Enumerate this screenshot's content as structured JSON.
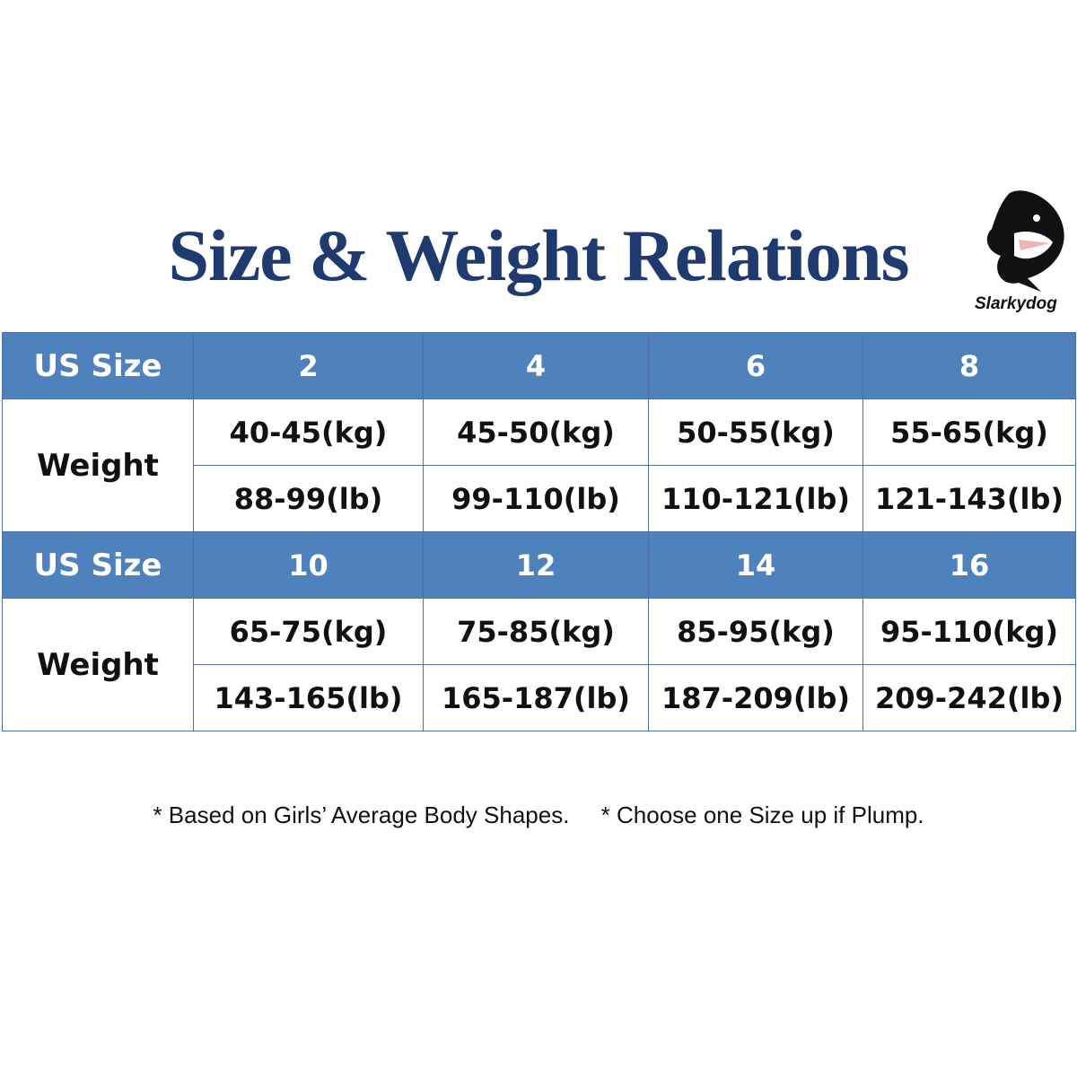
{
  "header": {
    "title": "Size & Weight Relations",
    "brand": "Slarkydog"
  },
  "blocks": [
    {
      "size_label": "US Size",
      "sizes": [
        "2",
        "4",
        "6",
        "8"
      ],
      "weight_label": "Weight",
      "kg": [
        "40-45(kg)",
        "45-50(kg)",
        "50-55(kg)",
        "55-65(kg)"
      ],
      "lb": [
        "88-99(lb)",
        "99-110(lb)",
        "110-121(lb)",
        "121-143(lb)"
      ]
    },
    {
      "size_label": "US Size",
      "sizes": [
        "10",
        "12",
        "14",
        "16"
      ],
      "weight_label": "Weight",
      "kg": [
        "65-75(kg)",
        "75-85(kg)",
        "85-95(kg)",
        "95-110(kg)"
      ],
      "lb": [
        "143-165(lb)",
        "165-187(lb)",
        "187-209(lb)",
        "209-242(lb)"
      ]
    }
  ],
  "notes": [
    "* Based on Girls’ Average Body Shapes.",
    "* Choose one Size up if Plump."
  ]
}
